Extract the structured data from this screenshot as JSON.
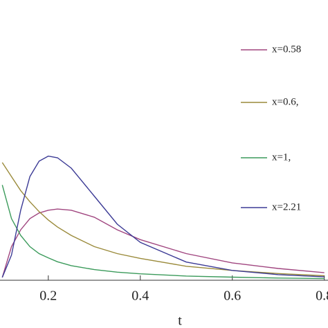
{
  "chart_data": {
    "type": "line",
    "x_label": "t",
    "x": [
      0.1,
      0.12,
      0.14,
      0.16,
      0.18,
      0.2,
      0.22,
      0.25,
      0.3,
      0.35,
      0.4,
      0.5,
      0.6,
      0.7,
      0.8
    ],
    "series": [
      {
        "name": "x=0.58",
        "color": "#a0457f",
        "values": [
          0.01,
          0.12,
          0.18,
          0.22,
          0.24,
          0.25,
          0.254,
          0.25,
          0.225,
          0.18,
          0.145,
          0.095,
          0.062,
          0.042,
          0.027
        ]
      },
      {
        "name": "x=0.6,",
        "color": "#9a8a3a",
        "values": [
          0.42,
          0.37,
          0.32,
          0.28,
          0.245,
          0.215,
          0.19,
          0.16,
          0.12,
          0.095,
          0.078,
          0.05,
          0.035,
          0.024,
          0.016
        ]
      },
      {
        "name": "x=1,",
        "color": "#3a9a5a",
        "values": [
          0.34,
          0.22,
          0.16,
          0.12,
          0.095,
          0.08,
          0.066,
          0.052,
          0.038,
          0.029,
          0.023,
          0.015,
          0.011,
          0.008,
          0.006
        ]
      },
      {
        "name": "x=2.21",
        "color": "#3b3a95",
        "values": [
          0.01,
          0.09,
          0.25,
          0.37,
          0.425,
          0.443,
          0.437,
          0.4,
          0.3,
          0.2,
          0.135,
          0.065,
          0.035,
          0.02,
          0.012
        ]
      }
    ],
    "xlim": [
      0.095,
      0.808
    ],
    "xticks": [
      0.2,
      0.4,
      0.6,
      0.8
    ],
    "ylim": [
      0,
      1
    ]
  }
}
